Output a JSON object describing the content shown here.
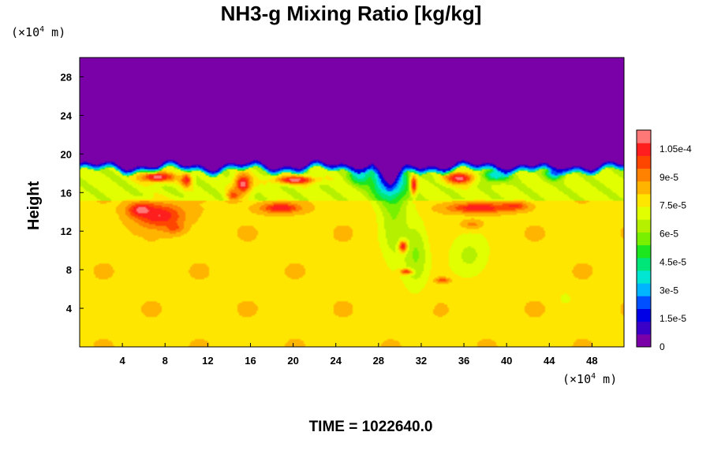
{
  "chart_data": {
    "type": "heatmap",
    "title": "NH3-g Mixing Ratio [kg/kg]",
    "ylabel": "Height",
    "x_unit": "(×10",
    "x_unit_exp": "4",
    "x_unit_tail": " m)",
    "y_unit": "(×10",
    "y_unit_exp": "4",
    "y_unit_tail": " m)",
    "xlim": [
      0,
      51
    ],
    "ylim": [
      0,
      30
    ],
    "x_ticks": [
      4,
      8,
      12,
      16,
      20,
      24,
      28,
      32,
      36,
      40,
      44,
      48
    ],
    "y_ticks": [
      4,
      8,
      12,
      16,
      20,
      24,
      28
    ],
    "x_tick_labels": [
      "4",
      "8",
      "12",
      "16",
      "20",
      "24",
      "28",
      "32",
      "36",
      "40",
      "44",
      "48"
    ],
    "y_tick_labels": [
      "4",
      "8",
      "12",
      "16",
      "20",
      "24",
      "28"
    ],
    "colorbar": {
      "range": [
        0,
        0.000115
      ],
      "labels": [
        "0",
        "1.5e-5",
        "3e-5",
        "4.5e-5",
        "6e-5",
        "7.5e-5",
        "9e-5",
        "1.05e-4"
      ],
      "values": [
        0,
        1.5e-05,
        3e-05,
        4.5e-05,
        6e-05,
        7.5e-05,
        9e-05,
        0.000105
      ],
      "colors": [
        "#7a00a8",
        "#3a00c8",
        "#0000e6",
        "#0050ff",
        "#00b4ff",
        "#00e6d2",
        "#00e678",
        "#1ee61e",
        "#78f000",
        "#b4f000",
        "#e1ff00",
        "#ffe600",
        "#ffb400",
        "#ff8200",
        "#ff4600",
        "#ff1e1e",
        "#ff7878"
      ]
    },
    "fields": {
      "upper_value": 0,
      "lower_value": 8e-05,
      "layer_value": 7e-05,
      "plumes": [
        {
          "x": 7.5,
          "y": 13.6,
          "rx": 2.2,
          "ry": 1.2,
          "v": 0.000108
        },
        {
          "x": 5.8,
          "y": 14.2,
          "rx": 1.2,
          "ry": 0.7,
          "v": 0.000112
        },
        {
          "x": 8.8,
          "y": 12.4,
          "rx": 0.9,
          "ry": 0.6,
          "v": 9.8e-05
        },
        {
          "x": 7.3,
          "y": 17.6,
          "rx": 1.6,
          "ry": 0.5,
          "v": 0.000112
        },
        {
          "x": 10.0,
          "y": 17.3,
          "rx": 0.5,
          "ry": 0.7,
          "v": 0.000105
        },
        {
          "x": 15.3,
          "y": 16.9,
          "rx": 0.8,
          "ry": 1.0,
          "v": 0.000112
        },
        {
          "x": 14.4,
          "y": 15.7,
          "rx": 0.6,
          "ry": 0.6,
          "v": 0.0001
        },
        {
          "x": 20.2,
          "y": 17.3,
          "rx": 1.8,
          "ry": 0.4,
          "v": 0.000112
        },
        {
          "x": 18.8,
          "y": 14.4,
          "rx": 1.8,
          "ry": 0.5,
          "v": 0.000108
        },
        {
          "x": 31.3,
          "y": 16.8,
          "rx": 0.3,
          "ry": 1.0,
          "v": 0.000108
        },
        {
          "x": 35.6,
          "y": 17.5,
          "rx": 1.3,
          "ry": 0.6,
          "v": 0.000112
        },
        {
          "x": 37.4,
          "y": 14.4,
          "rx": 2.8,
          "ry": 0.5,
          "v": 0.000108
        },
        {
          "x": 40.7,
          "y": 14.6,
          "rx": 1.2,
          "ry": 0.4,
          "v": 0.000104
        },
        {
          "x": 30.3,
          "y": 10.4,
          "rx": 0.4,
          "ry": 0.6,
          "v": 0.000105
        },
        {
          "x": 30.6,
          "y": 7.8,
          "rx": 0.6,
          "ry": 0.3,
          "v": 0.0001
        },
        {
          "x": 34.0,
          "y": 6.9,
          "rx": 0.7,
          "ry": 0.3,
          "v": 9.8e-05
        },
        {
          "x": 36.8,
          "y": 12.7,
          "rx": 1.0,
          "ry": 0.5,
          "v": 9e-05
        }
      ],
      "dips": [
        {
          "x": 29.5,
          "y": 13.0,
          "rx": 1.4,
          "ry": 5.0,
          "v": 6.2e-05
        },
        {
          "x": 31.5,
          "y": 9.5,
          "rx": 1.2,
          "ry": 3.5,
          "v": 6e-05
        },
        {
          "x": 36.5,
          "y": 9.5,
          "rx": 2.0,
          "ry": 2.5,
          "v": 6.6e-05
        },
        {
          "x": 45.5,
          "y": 5.0,
          "rx": 0.8,
          "ry": 0.8,
          "v": 7.2e-05
        },
        {
          "x": 29.0,
          "y": 17.8,
          "rx": 1.6,
          "ry": 2.4,
          "v": 1.2e-05
        },
        {
          "x": 39.0,
          "y": 17.8,
          "rx": 1.3,
          "ry": 0.7,
          "v": 3.5e-05
        },
        {
          "x": 26.3,
          "y": 17.8,
          "rx": 1.0,
          "ry": 0.9,
          "v": 3.5e-05
        },
        {
          "x": 44.5,
          "y": 18.0,
          "rx": 0.8,
          "ry": 0.6,
          "v": 2.5e-05
        }
      ]
    },
    "time_label": "TIME = 1022640.0"
  }
}
